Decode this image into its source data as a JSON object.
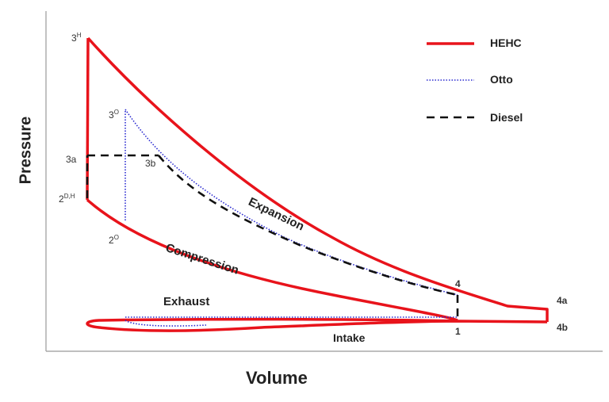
{
  "axes": {
    "x_label": "Volume",
    "y_label": "Pressure"
  },
  "legend": [
    {
      "name": "HEHC",
      "style": "solid",
      "color": "#e8131b"
    },
    {
      "name": "Otto",
      "style": "dotted",
      "color": "#2a2ad0"
    },
    {
      "name": "Diesel",
      "style": "dashed",
      "color": "#111111"
    }
  ],
  "process_labels": {
    "expansion": "Expansion",
    "compression": "Compression",
    "exhaust": "Exhaust",
    "intake": "Intake"
  },
  "points": {
    "p3H": {
      "base": "3",
      "sup": "H"
    },
    "p3O": {
      "base": "3",
      "sup": "O"
    },
    "p3a": "3a",
    "p3b": "3b",
    "p2DH": {
      "base": "2",
      "sup": "D,H"
    },
    "p2O": {
      "base": "2",
      "sup": "O"
    },
    "p4": "4",
    "p4a": "4a",
    "p4b": "4b",
    "p1": "1"
  }
}
